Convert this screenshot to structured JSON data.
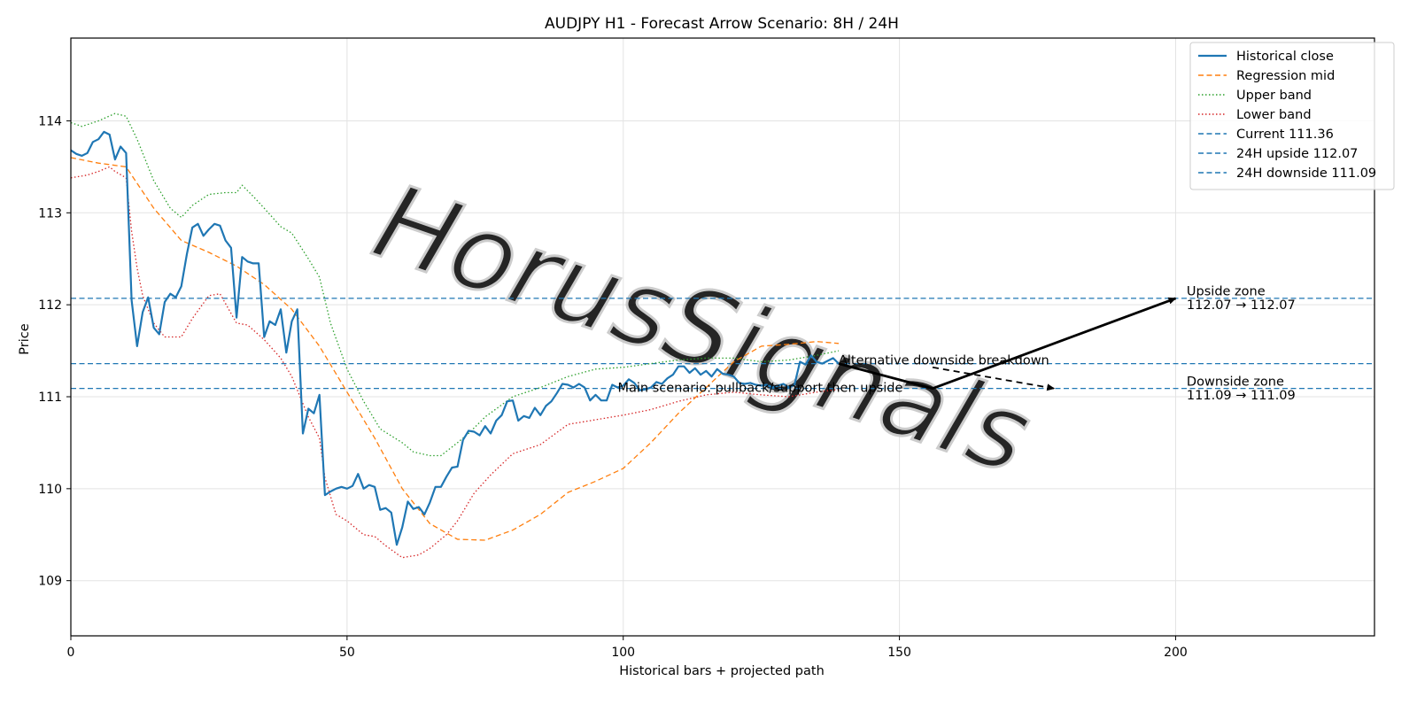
{
  "chart_data": {
    "type": "line",
    "title": "AUDJPY H1 - Forecast Arrow Scenario: 8H / 24H",
    "xlabel": "Historical bars + projected path",
    "ylabel": "Price",
    "xlim": [
      0,
      236
    ],
    "ylim": [
      108.4,
      114.9
    ],
    "xticks": [
      0,
      50,
      100,
      150,
      200
    ],
    "yticks": [
      109,
      110,
      111,
      112,
      113,
      114
    ],
    "grid": true,
    "legend_position": "top-right",
    "watermark": "HorusSignals",
    "colors": {
      "close": "#1f77b4",
      "mid": "#ff7f0e",
      "upper": "#2ca02c",
      "lower": "#d62728",
      "level": "#1f77b4",
      "arrow": "#000000"
    },
    "series": [
      {
        "name": "Historical close",
        "style": "solid",
        "x": [
          0,
          1,
          2,
          3,
          4,
          5,
          6,
          7,
          8,
          9,
          10,
          11,
          12,
          13,
          14,
          15,
          16,
          17,
          18,
          19,
          20,
          21,
          22,
          23,
          24,
          25,
          26,
          27,
          28,
          29,
          30,
          31,
          32,
          33,
          34,
          35,
          36,
          37,
          38,
          39,
          40,
          41,
          42,
          43,
          44,
          45,
          46,
          47,
          48,
          49,
          50,
          51,
          52,
          53,
          54,
          55,
          56,
          57,
          58,
          59,
          60,
          61,
          62,
          63,
          64,
          65,
          66,
          67,
          68,
          69,
          70,
          71,
          72,
          73,
          74,
          75,
          76,
          77,
          78,
          79,
          80,
          81,
          82,
          83,
          84,
          85,
          86,
          87,
          88,
          89,
          90,
          91,
          92,
          93,
          94,
          95,
          96,
          97,
          98,
          99,
          100,
          101,
          102,
          103,
          104,
          105,
          106,
          107,
          108,
          109,
          110,
          111,
          112,
          113,
          114,
          115,
          116,
          117,
          118,
          119,
          120,
          121,
          122,
          123,
          124,
          125,
          126,
          127,
          128,
          129,
          130,
          131,
          132,
          133,
          134,
          135,
          136,
          137,
          138,
          139
        ],
        "y": [
          113.68,
          113.64,
          113.62,
          113.65,
          113.77,
          113.8,
          113.88,
          113.85,
          113.58,
          113.72,
          113.65,
          112.05,
          111.55,
          111.92,
          112.08,
          111.75,
          111.68,
          112.03,
          112.12,
          112.08,
          112.2,
          112.55,
          112.84,
          112.88,
          112.75,
          112.82,
          112.88,
          112.86,
          112.7,
          112.62,
          111.86,
          112.52,
          112.47,
          112.45,
          112.45,
          111.65,
          111.82,
          111.78,
          111.95,
          111.48,
          111.82,
          111.95,
          110.6,
          110.87,
          110.82,
          111.02,
          109.93,
          109.97,
          110.0,
          110.02,
          110.0,
          110.03,
          110.16,
          110.0,
          110.04,
          110.02,
          109.77,
          109.79,
          109.74,
          109.39,
          109.58,
          109.86,
          109.78,
          109.8,
          109.72,
          109.85,
          110.02,
          110.02,
          110.13,
          110.23,
          110.24,
          110.53,
          110.63,
          110.62,
          110.58,
          110.68,
          110.6,
          110.74,
          110.8,
          110.95,
          110.96,
          110.74,
          110.79,
          110.77,
          110.88,
          110.8,
          110.9,
          110.95,
          111.04,
          111.14,
          111.13,
          111.1,
          111.14,
          111.1,
          110.96,
          111.02,
          110.96,
          110.96,
          111.13,
          111.1,
          111.12,
          111.19,
          111.15,
          111.07,
          111.08,
          111.1,
          111.16,
          111.14,
          111.2,
          111.24,
          111.33,
          111.33,
          111.26,
          111.31,
          111.24,
          111.28,
          111.22,
          111.3,
          111.25,
          111.24,
          111.22,
          111.15,
          111.14,
          111.15,
          111.13,
          111.12,
          111.13,
          111.1,
          111.12,
          111.14,
          111.1,
          111.13,
          111.38,
          111.35,
          111.45,
          111.38,
          111.36,
          111.39,
          111.42,
          111.36
        ]
      },
      {
        "name": "Regression mid",
        "style": "dashed",
        "x": [
          0,
          5,
          10,
          15,
          20,
          25,
          30,
          35,
          40,
          45,
          50,
          55,
          60,
          65,
          70,
          75,
          80,
          85,
          90,
          95,
          100,
          105,
          110,
          115,
          120,
          125,
          130,
          135,
          139
        ],
        "y": [
          113.6,
          113.54,
          113.5,
          113.05,
          112.7,
          112.57,
          112.42,
          112.22,
          111.95,
          111.55,
          111.05,
          110.55,
          110.0,
          109.62,
          109.45,
          109.44,
          109.55,
          109.72,
          109.96,
          110.08,
          110.22,
          110.5,
          110.82,
          111.1,
          111.38,
          111.55,
          111.57,
          111.6,
          111.58
        ]
      },
      {
        "name": "Upper band",
        "style": "dotted",
        "x": [
          0,
          2,
          5,
          8,
          10,
          12,
          15,
          18,
          20,
          22,
          25,
          28,
          30,
          31,
          33,
          35,
          38,
          40,
          43,
          45,
          47,
          50,
          53,
          56,
          60,
          62,
          65,
          67,
          70,
          72,
          75,
          80,
          85,
          90,
          95,
          100,
          105,
          110,
          115,
          120,
          125,
          130,
          135,
          139
        ],
        "y": [
          113.98,
          113.94,
          114.0,
          114.08,
          114.05,
          113.8,
          113.35,
          113.05,
          112.95,
          113.08,
          113.2,
          113.22,
          113.22,
          113.3,
          113.18,
          113.05,
          112.85,
          112.78,
          112.5,
          112.3,
          111.8,
          111.3,
          110.95,
          110.65,
          110.5,
          110.4,
          110.36,
          110.36,
          110.5,
          110.6,
          110.78,
          111.0,
          111.1,
          111.22,
          111.3,
          111.32,
          111.36,
          111.4,
          111.42,
          111.42,
          111.38,
          111.4,
          111.45,
          111.5
        ]
      },
      {
        "name": "Lower band",
        "style": "dotted",
        "x": [
          0,
          3,
          5,
          7,
          8,
          10,
          11,
          12,
          13,
          14,
          15,
          17,
          20,
          22,
          25,
          27,
          30,
          32,
          35,
          38,
          40,
          43,
          45,
          46,
          48,
          50,
          53,
          55,
          57,
          60,
          63,
          65,
          68,
          70,
          73,
          76,
          80,
          85,
          90,
          95,
          100,
          105,
          110,
          115,
          120,
          125,
          130,
          135,
          139
        ],
        "y": [
          113.38,
          113.41,
          113.45,
          113.5,
          113.45,
          113.38,
          112.8,
          112.4,
          112.1,
          111.95,
          111.8,
          111.65,
          111.65,
          111.85,
          112.1,
          112.12,
          111.8,
          111.78,
          111.62,
          111.42,
          111.22,
          110.78,
          110.55,
          110.12,
          109.72,
          109.65,
          109.5,
          109.48,
          109.38,
          109.25,
          109.28,
          109.35,
          109.5,
          109.65,
          109.95,
          110.15,
          110.38,
          110.48,
          110.7,
          110.75,
          110.8,
          110.86,
          110.95,
          111.02,
          111.05,
          111.02,
          111.0,
          111.05,
          111.08
        ]
      }
    ],
    "levels": [
      {
        "name": "Current 111.36",
        "y": 111.36
      },
      {
        "name": "24H upside 112.07",
        "y": 112.07
      },
      {
        "name": "24H downside 111.09",
        "y": 111.09
      }
    ],
    "arrows": [
      {
        "name": "Main scenario: pullback/support then upside",
        "style": "solid",
        "points": [
          [
            139,
            111.36
          ],
          [
            156,
            111.09
          ],
          [
            200,
            112.07
          ]
        ]
      },
      {
        "name": "Alternative downside breakdown",
        "style": "dashed",
        "points": [
          [
            156,
            111.32
          ],
          [
            178,
            111.09
          ]
        ]
      }
    ],
    "annotations": [
      {
        "text": "Alternative downside breakdown",
        "x": 139,
        "y": 111.4
      },
      {
        "text": "Main scenario: pullback/support then upside",
        "x": 99,
        "y": 111.1
      },
      {
        "text": "Upside zone",
        "x": 202,
        "y": 112.15
      },
      {
        "text": "112.07 → 112.07",
        "x": 202,
        "y": 112.0
      },
      {
        "text": "Downside zone",
        "x": 202,
        "y": 111.17
      },
      {
        "text": "111.09 → 111.09",
        "x": 202,
        "y": 111.02
      }
    ]
  }
}
